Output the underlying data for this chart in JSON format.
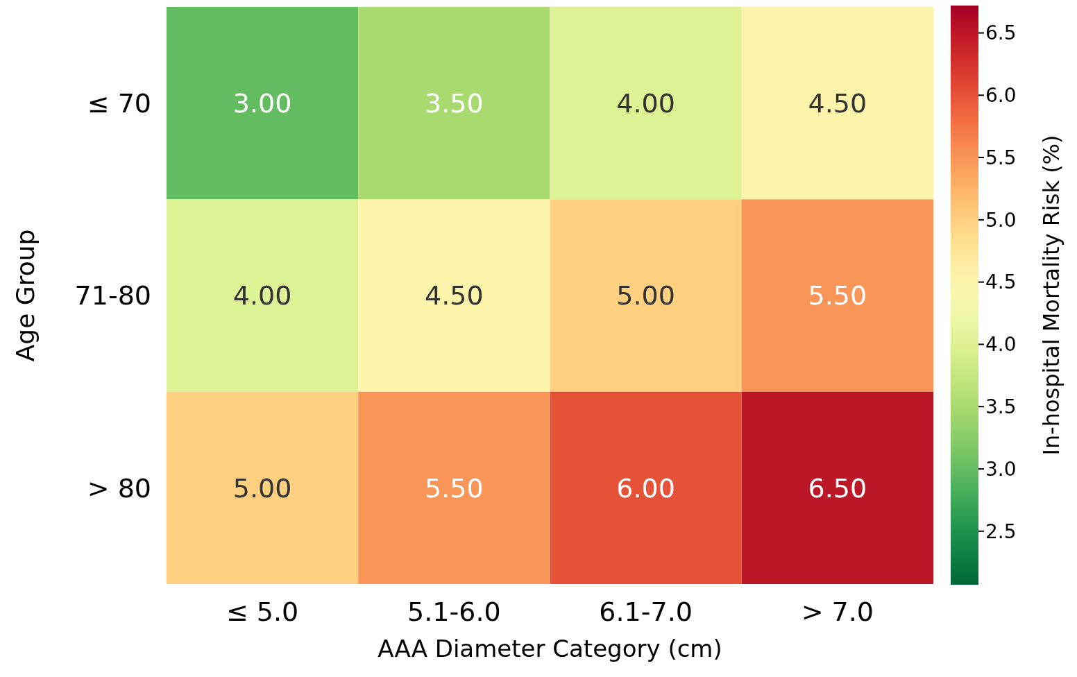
{
  "chart_data": {
    "type": "heatmap",
    "xlabel": "AAA Diameter Category (cm)",
    "ylabel": "Age Group",
    "clabel": "In-hospital Mortality Risk (%)",
    "categories": [
      "≤ 5.0",
      "5.1-6.0",
      "6.1-7.0",
      "> 7.0"
    ],
    "y_categories": [
      "≤ 70",
      "71-80",
      "> 80"
    ],
    "cells": [
      [
        3.0,
        3.5,
        4.0,
        4.5
      ],
      [
        4.0,
        4.5,
        5.0,
        5.5
      ],
      [
        5.0,
        5.5,
        6.0,
        6.5
      ]
    ],
    "cell_labels": [
      [
        "3.00",
        "3.50",
        "4.00",
        "4.50"
      ],
      [
        "4.00",
        "4.50",
        "5.00",
        "5.50"
      ],
      [
        "5.00",
        "5.50",
        "6.00",
        "6.50"
      ]
    ],
    "clim": [
      2.07,
      6.72
    ],
    "cticks": [
      {
        "value": 2.5,
        "label": "2.5"
      },
      {
        "value": 3.0,
        "label": "3.0"
      },
      {
        "value": 3.5,
        "label": "3.5"
      },
      {
        "value": 4.0,
        "label": "4.0"
      },
      {
        "value": 4.5,
        "label": "4.5"
      },
      {
        "value": 5.0,
        "label": "5.0"
      },
      {
        "value": 5.5,
        "label": "5.5"
      },
      {
        "value": 6.0,
        "label": "6.0"
      },
      {
        "value": 6.5,
        "label": "6.5"
      }
    ]
  }
}
